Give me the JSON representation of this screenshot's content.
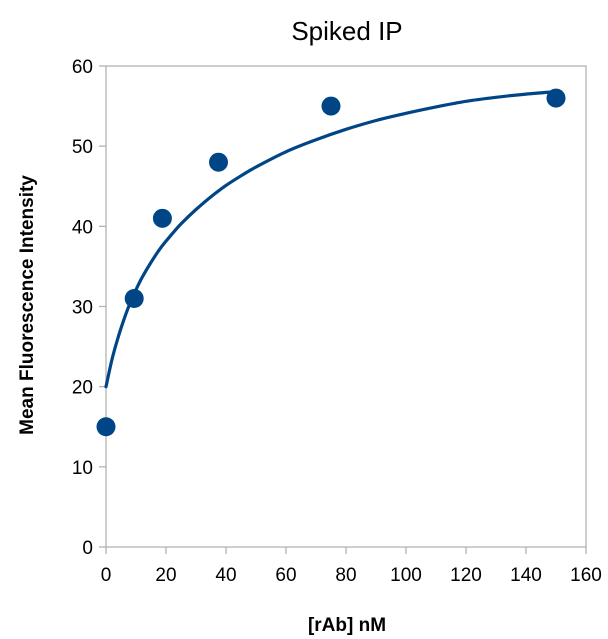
{
  "chart_data": {
    "type": "scatter",
    "title": "Spiked IP",
    "xlabel": "[rAb] nM",
    "ylabel": "Mean Fluorescence Intensity",
    "xlim": [
      0,
      160
    ],
    "ylim": [
      0,
      60
    ],
    "x_ticks": [
      0,
      20,
      40,
      60,
      80,
      100,
      120,
      140,
      160
    ],
    "y_ticks": [
      0,
      10,
      20,
      30,
      40,
      50,
      60
    ],
    "grid": false,
    "legend": "none",
    "series": [
      {
        "type": "scatter",
        "x": [
          0,
          9.4,
          18.8,
          37.5,
          75,
          150
        ],
        "y": [
          15,
          31,
          41,
          48,
          55,
          56
        ]
      },
      {
        "type": "line",
        "x": [
          0,
          2,
          4,
          6,
          8,
          10,
          12,
          15,
          18,
          21,
          25,
          30,
          35,
          40,
          45,
          50,
          60,
          70,
          80,
          90,
          100,
          110,
          120,
          130,
          140,
          150
        ],
        "y": [
          20,
          23.4,
          26.1,
          28.4,
          30.4,
          32.1,
          33.6,
          35.5,
          37.2,
          38.6,
          40.3,
          42.1,
          43.7,
          45.1,
          46.3,
          47.4,
          49.3,
          50.8,
          52.1,
          53.2,
          54.1,
          54.9,
          55.6,
          56.1,
          56.5,
          56.8
        ]
      }
    ],
    "colors": {
      "series": "#004586",
      "axis": "#b3b3b3"
    }
  }
}
